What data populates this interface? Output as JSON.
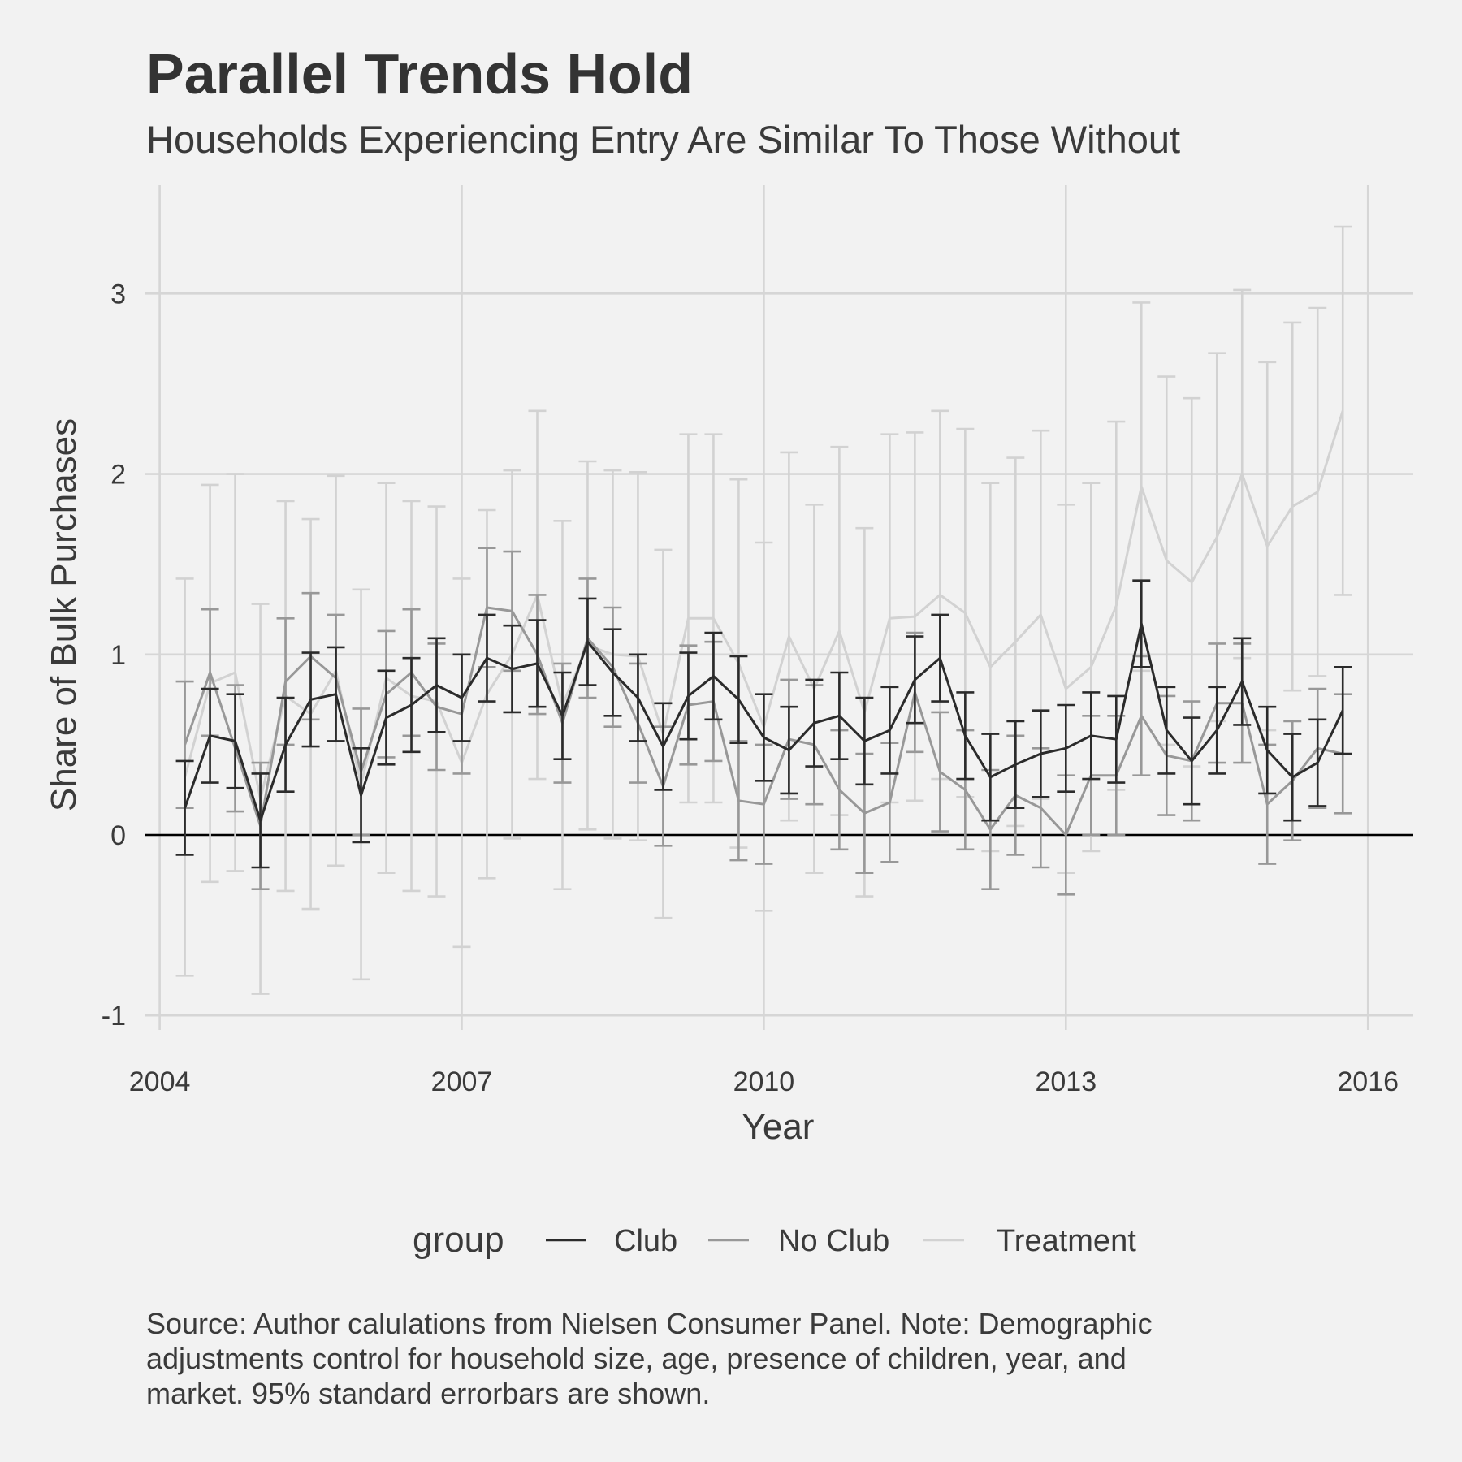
{
  "chart_data": {
    "type": "line",
    "title": "Parallel Trends Hold",
    "subtitle": "Households Experiencing Entry Are Similar To Those Without",
    "xlabel": "Year",
    "ylabel": "Share of Bulk Purchases",
    "xlim": [
      2003.85,
      2016.45
    ],
    "ylim": [
      -1.08,
      3.6
    ],
    "x_ticks": [
      2004,
      2007,
      2010,
      2013,
      2016
    ],
    "x_tick_labels": [
      "2004",
      "2007",
      "2010",
      "2013",
      "2016"
    ],
    "y_ticks": [
      -1,
      0,
      1,
      2,
      3
    ],
    "y_tick_labels": [
      "-1",
      "0",
      "1",
      "2",
      "3"
    ],
    "grid": true,
    "reference_line_y": 0,
    "legend": {
      "title": "group",
      "position": "bottom",
      "entries": [
        "Club",
        "No Club",
        "Treatment"
      ]
    },
    "x_start": 2004.25,
    "x_step": 0.25,
    "series": [
      {
        "name": "Club",
        "color": "#2b2b2b",
        "values": [
          0.15,
          0.55,
          0.52,
          0.08,
          0.5,
          0.75,
          0.78,
          0.22,
          0.65,
          0.72,
          0.83,
          0.76,
          0.98,
          0.92,
          0.95,
          0.66,
          1.07,
          0.9,
          0.76,
          0.49,
          0.77,
          0.88,
          0.75,
          0.54,
          0.47,
          0.62,
          0.66,
          0.52,
          0.58,
          0.86,
          0.98,
          0.55,
          0.32,
          0.39,
          0.45,
          0.48,
          0.55,
          0.53,
          1.17,
          0.58,
          0.41,
          0.58,
          0.85,
          0.47,
          0.32,
          0.4,
          0.69
        ],
        "error": [
          0.26,
          0.26,
          0.26,
          0.26,
          0.26,
          0.26,
          0.26,
          0.26,
          0.26,
          0.26,
          0.26,
          0.24,
          0.24,
          0.24,
          0.24,
          0.24,
          0.24,
          0.24,
          0.24,
          0.24,
          0.24,
          0.24,
          0.24,
          0.24,
          0.24,
          0.24,
          0.24,
          0.24,
          0.24,
          0.24,
          0.24,
          0.24,
          0.24,
          0.24,
          0.24,
          0.24,
          0.24,
          0.24,
          0.24,
          0.24,
          0.24,
          0.24,
          0.24,
          0.24,
          0.24,
          0.24,
          0.24
        ]
      },
      {
        "name": "No Club",
        "color": "#989898",
        "values": [
          0.5,
          0.9,
          0.48,
          0.05,
          0.85,
          0.99,
          0.87,
          0.35,
          0.78,
          0.9,
          0.71,
          0.67,
          1.26,
          1.24,
          1.0,
          0.62,
          1.09,
          0.93,
          0.62,
          0.27,
          0.72,
          0.74,
          0.19,
          0.17,
          0.53,
          0.5,
          0.25,
          0.12,
          0.18,
          0.79,
          0.35,
          0.25,
          0.03,
          0.22,
          0.15,
          0.0,
          0.33,
          0.33,
          0.66,
          0.44,
          0.41,
          0.73,
          0.73,
          0.17,
          0.3,
          0.48,
          0.45
        ],
        "error": [
          0.35,
          0.35,
          0.35,
          0.35,
          0.35,
          0.35,
          0.35,
          0.35,
          0.35,
          0.35,
          0.35,
          0.33,
          0.33,
          0.33,
          0.33,
          0.33,
          0.33,
          0.33,
          0.33,
          0.33,
          0.33,
          0.33,
          0.33,
          0.33,
          0.33,
          0.33,
          0.33,
          0.33,
          0.33,
          0.33,
          0.33,
          0.33,
          0.33,
          0.33,
          0.33,
          0.33,
          0.33,
          0.33,
          0.33,
          0.33,
          0.33,
          0.33,
          0.33,
          0.33,
          0.33,
          0.33,
          0.33
        ]
      },
      {
        "name": "Treatment",
        "color": "#d2d2d2",
        "values": [
          0.32,
          0.84,
          0.9,
          0.2,
          0.77,
          0.67,
          0.91,
          0.28,
          0.87,
          0.77,
          0.74,
          0.4,
          0.78,
          1.0,
          1.33,
          0.72,
          1.05,
          1.0,
          0.99,
          0.56,
          1.2,
          1.2,
          0.95,
          0.6,
          1.1,
          0.81,
          1.13,
          0.68,
          1.2,
          1.21,
          1.33,
          1.23,
          0.93,
          1.07,
          1.22,
          0.81,
          0.93,
          1.27,
          1.93,
          1.52,
          1.4,
          1.65,
          2.0,
          1.6,
          1.82,
          1.9,
          2.35
        ],
        "error": [
          1.1,
          1.1,
          1.1,
          1.08,
          1.08,
          1.08,
          1.08,
          1.08,
          1.08,
          1.08,
          1.08,
          1.02,
          1.02,
          1.02,
          1.02,
          1.02,
          1.02,
          1.02,
          1.02,
          1.02,
          1.02,
          1.02,
          1.02,
          1.02,
          1.02,
          1.02,
          1.02,
          1.02,
          1.02,
          1.02,
          1.02,
          1.02,
          1.02,
          1.02,
          1.02,
          1.02,
          1.02,
          1.02,
          1.02,
          1.02,
          1.02,
          1.02,
          1.02,
          1.02,
          1.02,
          1.02,
          1.02
        ]
      }
    ],
    "caption": [
      "Source: Author calulations from Nielsen Consumer Panel. Note: Demographic",
      "adjustments control for household size, age, presence of children, year, and",
      "market. 95% standard errorbars are shown."
    ]
  }
}
